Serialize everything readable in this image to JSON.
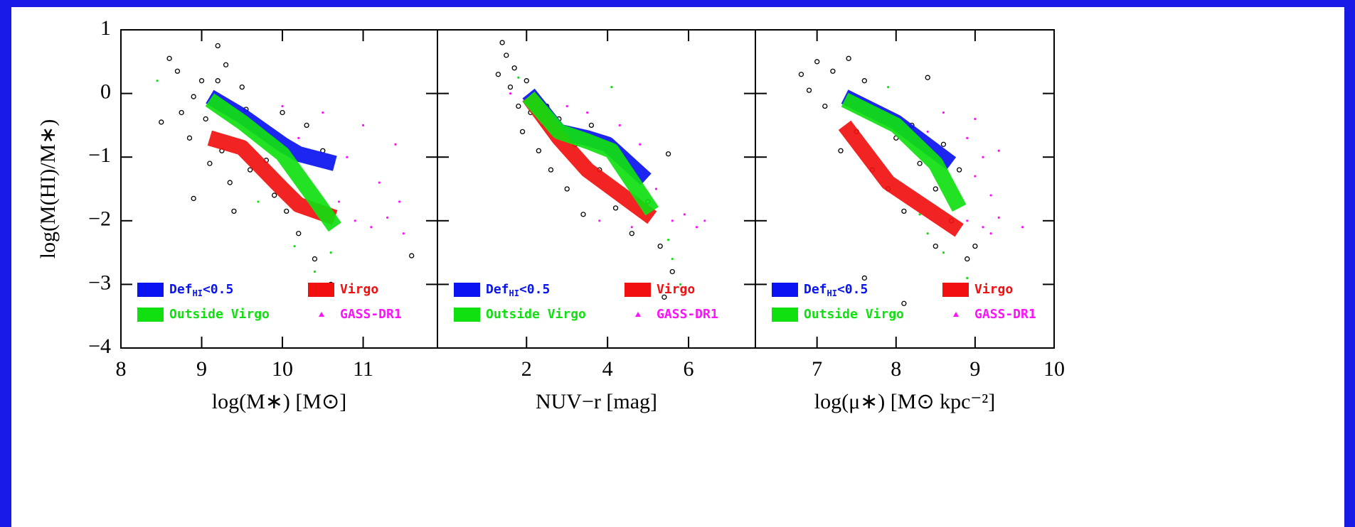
{
  "y_label": "log(M(HI)/M∗)",
  "chart_data": [
    {
      "type": "scatter",
      "x_label": "log(M∗) [M⊙]",
      "xlim": [
        8,
        11.92
      ],
      "xticks": [
        8,
        9,
        10,
        11
      ],
      "ylim": [
        -4,
        1
      ],
      "yticks": [
        {
          "value": -4,
          "label": "−4"
        },
        {
          "value": -3,
          "label": "−3"
        },
        {
          "value": -2,
          "label": "−2"
        },
        {
          "value": -1,
          "label": "−1"
        },
        0,
        1
      ],
      "series": [
        {
          "name": "Def",
          "name_sub": "HI",
          "name_tail": "<0.5",
          "color": "#0a14f0",
          "style": "band",
          "x": [
            9.1,
            9.5,
            10.0,
            10.2,
            10.65
          ],
          "values": [
            -0.05,
            -0.35,
            -0.8,
            -0.95,
            -1.1
          ]
        },
        {
          "name": "Virgo",
          "color": "#f01010",
          "style": "band",
          "x": [
            9.1,
            9.5,
            10.0,
            10.2,
            10.65
          ],
          "values": [
            -0.7,
            -0.85,
            -1.5,
            -1.75,
            -1.95
          ]
        },
        {
          "name": "Outside Virgo",
          "color": "#10e010",
          "style": "band",
          "x": [
            9.1,
            9.5,
            10.0,
            10.4,
            10.65
          ],
          "values": [
            -0.1,
            -0.45,
            -0.95,
            -1.65,
            -2.1
          ]
        },
        {
          "name": "GASS-DR1",
          "color": "#ff10ff",
          "style": "dot",
          "x": [
            10.0,
            10.2,
            10.5,
            10.8,
            11.0,
            11.2,
            11.4,
            10.9,
            11.1,
            11.3,
            11.5,
            10.7,
            11.45
          ],
          "values": [
            -0.2,
            -0.7,
            -0.3,
            -1.0,
            -0.5,
            -1.4,
            -0.8,
            -2.0,
            -2.1,
            -1.95,
            -2.2,
            -1.7,
            -1.7
          ]
        },
        {
          "color": "#000000",
          "style": "circle",
          "x": [
            8.5,
            8.6,
            8.7,
            8.75,
            8.85,
            8.9,
            9.0,
            9.05,
            9.1,
            9.2,
            9.25,
            9.3,
            9.35,
            9.4,
            9.5,
            9.55,
            9.6,
            9.7,
            9.8,
            9.9,
            10.0,
            10.05,
            10.2,
            10.3,
            10.4,
            10.5,
            10.6,
            9.2,
            8.9,
            11.6
          ],
          "values": [
            -0.45,
            0.55,
            0.35,
            -0.3,
            -0.7,
            -0.05,
            0.2,
            -0.4,
            -1.1,
            0.2,
            -0.9,
            0.45,
            -1.4,
            -1.85,
            0.1,
            -0.25,
            -1.2,
            -0.6,
            -1.05,
            -1.6,
            -0.3,
            -1.85,
            -2.2,
            -0.5,
            -2.6,
            -0.9,
            -3.0,
            0.75,
            -1.65,
            -2.55
          ]
        },
        {
          "color": "#10e010",
          "style": "dot",
          "x": [
            8.45,
            9.7,
            10.15,
            10.4,
            10.6
          ],
          "values": [
            0.2,
            -1.7,
            -2.4,
            -2.8,
            -2.5
          ]
        }
      ]
    },
    {
      "type": "scatter",
      "x_label": "NUV−r [mag]",
      "xlim": [
        -0.2,
        7.65
      ],
      "xticks": [
        2,
        4,
        6
      ],
      "ylim": [
        -4,
        1
      ],
      "yticks": [
        {
          "value": -4,
          "label": "−4"
        },
        {
          "value": -3,
          "label": "−3"
        },
        {
          "value": -2,
          "label": "−2"
        },
        {
          "value": -1,
          "label": "−1"
        },
        0,
        1
      ],
      "series": [
        {
          "name": "Def",
          "name_sub": "HI",
          "name_tail": "<0.5",
          "color": "#0a14f0",
          "style": "band",
          "x": [
            2.05,
            2.8,
            3.5,
            4.0,
            4.95
          ],
          "values": [
            0,
            -0.6,
            -0.7,
            -0.8,
            -1.35
          ]
        },
        {
          "name": "Virgo",
          "color": "#f01010",
          "style": "band",
          "x": [
            2.05,
            2.8,
            3.5,
            5.1
          ],
          "values": [
            -0.05,
            -0.7,
            -1.2,
            -1.95
          ]
        },
        {
          "name": "Outside Virgo",
          "color": "#10e010",
          "style": "band",
          "x": [
            2.05,
            2.8,
            3.5,
            4.1,
            5.1
          ],
          "values": [
            -0.05,
            -0.6,
            -0.75,
            -0.9,
            -1.85
          ]
        },
        {
          "name": "GASS-DR1",
          "color": "#ff10ff",
          "style": "dot",
          "x": [
            1.6,
            2.4,
            3.0,
            3.5,
            4.3,
            4.8,
            5.2,
            5.6,
            5.9,
            6.2,
            6.4,
            4.6,
            3.8
          ],
          "values": [
            0.0,
            -0.5,
            -0.2,
            -0.3,
            -0.5,
            -0.8,
            -1.5,
            -2.0,
            -1.9,
            -2.1,
            -2.0,
            -2.1,
            -2.0
          ]
        },
        {
          "color": "#000000",
          "style": "circle",
          "x": [
            1.3,
            1.5,
            1.6,
            1.7,
            1.8,
            1.9,
            2.0,
            2.1,
            2.3,
            2.5,
            2.6,
            2.8,
            3.0,
            3.2,
            3.4,
            3.6,
            3.8,
            4.0,
            4.2,
            4.4,
            4.6,
            5.0,
            5.3,
            5.5,
            5.6,
            5.4,
            1.4
          ],
          "values": [
            0.3,
            0.6,
            0.1,
            0.4,
            -0.2,
            -0.6,
            0.2,
            -0.3,
            -0.9,
            -0.2,
            -1.2,
            -0.4,
            -1.5,
            -0.8,
            -1.9,
            -0.5,
            -1.2,
            -0.9,
            -1.8,
            -1.0,
            -2.2,
            -1.7,
            -2.4,
            -0.95,
            -2.8,
            -3.2,
            0.8
          ]
        },
        {
          "color": "#10e010",
          "style": "dot",
          "x": [
            4.1,
            5.5,
            5.6,
            5.8,
            1.8
          ],
          "values": [
            0.1,
            -2.3,
            -2.6,
            -3.0,
            0.25
          ]
        }
      ]
    },
    {
      "type": "scatter",
      "x_label": "log(μ∗) [M⊙ kpc⁻²]",
      "xlim": [
        6.22,
        10
      ],
      "xticks": [
        7,
        8,
        9,
        10
      ],
      "ylim": [
        -4,
        1
      ],
      "yticks": [
        {
          "value": -4,
          "label": "−4"
        },
        {
          "value": -3,
          "label": "−3"
        },
        {
          "value": -2,
          "label": "−2"
        },
        {
          "value": -1,
          "label": "−1"
        },
        0,
        1
      ],
      "series": [
        {
          "name": "Def",
          "name_sub": "HI",
          "name_tail": "<0.5",
          "color": "#0a14f0",
          "style": "band",
          "x": [
            7.35,
            8.0,
            8.7
          ],
          "values": [
            -0.05,
            -0.45,
            -1.1
          ]
        },
        {
          "name": "Virgo",
          "color": "#f01010",
          "style": "band",
          "x": [
            7.35,
            7.9,
            8.8
          ],
          "values": [
            -0.5,
            -1.4,
            -2.15
          ]
        },
        {
          "name": "Outside Virgo",
          "color": "#10e010",
          "style": "band",
          "x": [
            7.35,
            8.0,
            8.5,
            8.8
          ],
          "values": [
            -0.1,
            -0.5,
            -1.1,
            -1.8
          ]
        },
        {
          "name": "GASS-DR1",
          "color": "#ff10ff",
          "style": "dot",
          "x": [
            8.6,
            8.9,
            9.0,
            9.1,
            9.2,
            9.3,
            8.9,
            9.1,
            9.3,
            9.2,
            9.6,
            8.4,
            9.0
          ],
          "values": [
            -0.3,
            -0.7,
            -1.3,
            -1.0,
            -1.6,
            -0.9,
            -2.0,
            -2.1,
            -1.95,
            -2.2,
            -2.1,
            -0.6,
            -0.4
          ]
        },
        {
          "color": "#000000",
          "style": "circle",
          "x": [
            6.8,
            6.9,
            7.0,
            7.1,
            7.2,
            7.3,
            7.4,
            7.5,
            7.6,
            7.7,
            7.8,
            7.9,
            8.0,
            8.1,
            8.2,
            8.3,
            8.4,
            8.5,
            8.6,
            8.7,
            8.8,
            8.9,
            9.0,
            8.5,
            7.6,
            8.1
          ],
          "values": [
            0.3,
            0.05,
            0.5,
            -0.2,
            0.35,
            -0.9,
            0.55,
            -0.6,
            0.2,
            -1.2,
            -0.3,
            -1.5,
            -0.7,
            -1.85,
            -0.5,
            -1.1,
            0.25,
            -1.5,
            -0.8,
            -2.0,
            -1.2,
            -2.6,
            -2.4,
            -2.4,
            -2.9,
            -3.3
          ]
        },
        {
          "color": "#10e010",
          "style": "dot",
          "x": [
            7.9,
            8.4,
            8.6,
            8.9,
            8.3
          ],
          "values": [
            0.1,
            -2.2,
            -2.5,
            -2.9,
            -1.9
          ]
        }
      ]
    }
  ]
}
